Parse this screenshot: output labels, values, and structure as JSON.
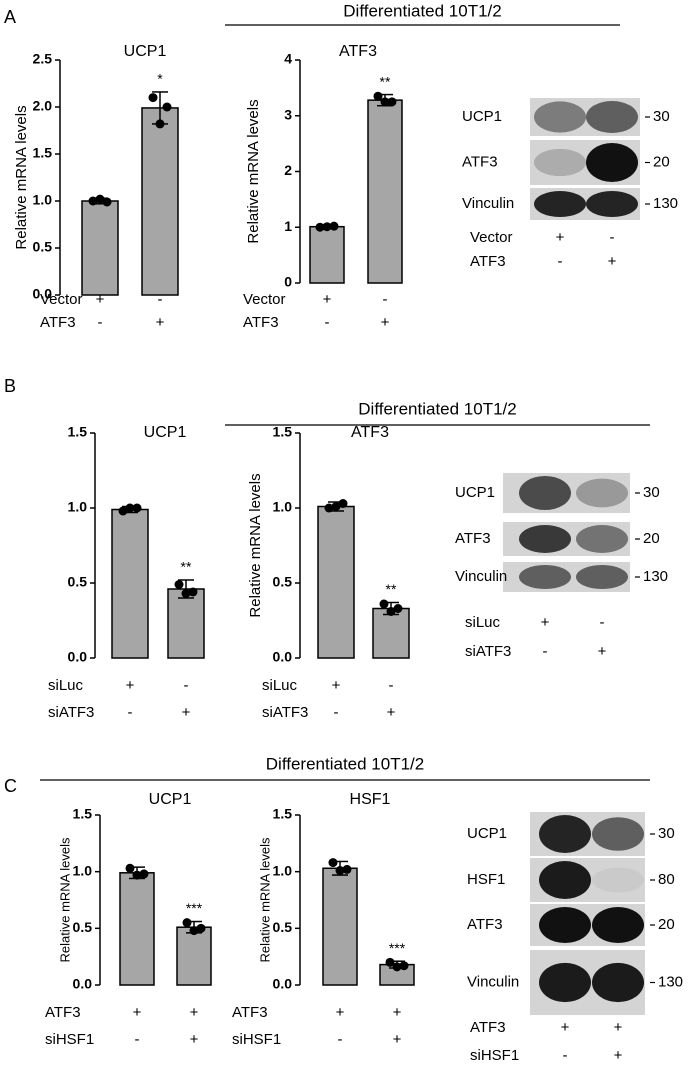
{
  "panels": [
    {
      "letter": "A",
      "title": "Differentiated 10T1/2",
      "blot": {
        "bands": [
          {
            "name": "UCP1",
            "size": 30
          },
          {
            "name": "ATF3",
            "size": 20
          },
          {
            "name": "Vinculin",
            "size": 130
          }
        ],
        "conditions": [
          {
            "name": "Vector",
            "signs": [
              "+",
              "-"
            ]
          },
          {
            "name": "ATF3",
            "signs": [
              "-",
              "+"
            ]
          }
        ]
      }
    },
    {
      "letter": "B",
      "title": "Differentiated 10T1/2",
      "blot": {
        "bands": [
          {
            "name": "UCP1",
            "size": 30
          },
          {
            "name": "ATF3",
            "size": 20
          },
          {
            "name": "Vinculin",
            "size": 130
          }
        ],
        "conditions": [
          {
            "name": "siLuc",
            "signs": [
              "+",
              "-"
            ]
          },
          {
            "name": "siATF3",
            "signs": [
              "-",
              "+"
            ]
          }
        ]
      }
    },
    {
      "letter": "C",
      "title": "Differentiated 10T1/2",
      "blot": {
        "bands": [
          {
            "name": "UCP1",
            "size": 30
          },
          {
            "name": "HSF1",
            "size": 80
          },
          {
            "name": "ATF3",
            "size": 20
          },
          {
            "name": "Vinculin",
            "size": 130
          }
        ],
        "conditions": [
          {
            "name": "ATF3",
            "signs": [
              "+",
              "+"
            ]
          },
          {
            "name": "siHSF1",
            "signs": [
              "-",
              "+"
            ]
          }
        ]
      }
    }
  ],
  "chart_data": [
    {
      "type": "bar",
      "title": "UCP1",
      "ylabel": "Relative mRNA levels",
      "color": "#a6a6a6",
      "categories": [
        null,
        null
      ],
      "values": [
        1.0,
        1.99
      ],
      "errors": [
        0.03,
        0.17
      ],
      "points": [
        [
          1.0,
          1.02,
          0.99
        ],
        [
          2.1,
          1.82,
          2.0
        ]
      ],
      "annotations": [
        null,
        "*"
      ],
      "conditions": [
        {
          "name": "Vector",
          "signs": [
            "+",
            "-"
          ]
        },
        {
          "name": "ATF3",
          "signs": [
            "-",
            "+"
          ]
        }
      ],
      "ylim": [
        0,
        2.5
      ],
      "yticks": [
        {
          "value": 0,
          "label": "0.0"
        },
        {
          "value": 0.5,
          "label": "0.5"
        },
        {
          "value": 1,
          "label": "1.0"
        },
        {
          "value": 1.5,
          "label": "1.5"
        },
        {
          "value": 2,
          "label": "2.0"
        },
        {
          "value": 2.5,
          "label": "2.5"
        }
      ]
    },
    {
      "type": "bar",
      "title": "ATF3",
      "ylabel": "Relative mRNA levels",
      "color": "#a6a6a6",
      "categories": [
        null,
        null
      ],
      "values": [
        1.01,
        3.28
      ],
      "errors": [
        0.03,
        0.1
      ],
      "points": [
        [
          1.0,
          1.01,
          1.02
        ],
        [
          3.35,
          3.25,
          3.25
        ]
      ],
      "annotations": [
        null,
        "**"
      ],
      "conditions": [
        {
          "name": "Vector",
          "signs": [
            "+",
            "-"
          ]
        },
        {
          "name": "ATF3",
          "signs": [
            "-",
            "+"
          ]
        }
      ],
      "ylim": [
        0,
        4
      ],
      "yticks": [
        0,
        1,
        2,
        3,
        4
      ]
    },
    {
      "type": "bar",
      "title": "UCP1",
      "color": "#a6a6a6",
      "categories": [
        null,
        null
      ],
      "values": [
        0.99,
        0.46
      ],
      "errors": [
        0.02,
        0.06
      ],
      "points": [
        [
          0.98,
          1.0,
          1.0
        ],
        [
          0.49,
          0.43,
          0.44
        ]
      ],
      "annotations": [
        null,
        "**"
      ],
      "conditions": [
        {
          "name": "siLuc",
          "signs": [
            "+",
            "-"
          ]
        },
        {
          "name": "siATF3",
          "signs": [
            "-",
            "+"
          ]
        }
      ],
      "ylim": [
        0,
        1.5
      ],
      "yticks": [
        {
          "value": 0,
          "label": "0.0"
        },
        {
          "value": 0.5,
          "label": "0.5"
        },
        {
          "value": 1,
          "label": "1.0"
        },
        {
          "value": 1.5,
          "label": "1.5"
        }
      ]
    },
    {
      "type": "bar",
      "title": "ATF3",
      "ylabel": "Relative mRNA levels",
      "color": "#a6a6a6",
      "categories": [
        null,
        null
      ],
      "values": [
        1.01,
        0.33
      ],
      "errors": [
        0.03,
        0.04
      ],
      "points": [
        [
          1.0,
          1.01,
          1.03
        ],
        [
          0.36,
          0.31,
          0.33
        ]
      ],
      "annotations": [
        null,
        "**"
      ],
      "conditions": [
        {
          "name": "siLuc",
          "signs": [
            "+",
            "-"
          ]
        },
        {
          "name": "siATF3",
          "signs": [
            "-",
            "+"
          ]
        }
      ],
      "ylim": [
        0,
        1.5
      ],
      "yticks": [
        {
          "value": 0,
          "label": "0.0"
        },
        {
          "value": 0.5,
          "label": "0.5"
        },
        {
          "value": 1,
          "label": "1.0"
        },
        {
          "value": 1.5,
          "label": "1.5"
        }
      ]
    },
    {
      "type": "bar",
      "title": "UCP1",
      "ylabel": "Relative mRNA levels",
      "color": "#a6a6a6",
      "categories": [
        null,
        null
      ],
      "values": [
        0.99,
        0.51
      ],
      "errors": [
        0.05,
        0.05
      ],
      "points": [
        [
          1.03,
          0.97,
          0.98
        ],
        [
          0.55,
          0.48,
          0.5
        ]
      ],
      "annotations": [
        null,
        "***"
      ],
      "conditions": [
        {
          "name": "ATF3",
          "signs": [
            "+",
            "+"
          ]
        },
        {
          "name": "siHSF1",
          "signs": [
            "-",
            "+"
          ]
        }
      ],
      "ylim": [
        0,
        1.5
      ],
      "yticks": [
        {
          "value": 0,
          "label": "0.0"
        },
        {
          "value": 0.5,
          "label": "0.5"
        },
        {
          "value": 1,
          "label": "1.0"
        },
        {
          "value": 1.5,
          "label": "1.5"
        }
      ]
    },
    {
      "type": "bar",
      "title": "HSF1",
      "ylabel": "Relative mRNA levels",
      "color": "#a6a6a6",
      "categories": [
        null,
        null
      ],
      "values": [
        1.03,
        0.18
      ],
      "errors": [
        0.06,
        0.03
      ],
      "points": [
        [
          1.08,
          1.01,
          1.02
        ],
        [
          0.2,
          0.16,
          0.17
        ]
      ],
      "annotations": [
        null,
        "***"
      ],
      "conditions": [
        {
          "name": "ATF3",
          "signs": [
            "+",
            "+"
          ]
        },
        {
          "name": "siHSF1",
          "signs": [
            "-",
            "+"
          ]
        }
      ],
      "ylim": [
        0,
        1.5
      ],
      "yticks": [
        {
          "value": 0,
          "label": "0.0"
        },
        {
          "value": 0.5,
          "label": "0.5"
        },
        {
          "value": 1,
          "label": "1.0"
        },
        {
          "value": 1.5,
          "label": "1.5"
        }
      ]
    }
  ]
}
